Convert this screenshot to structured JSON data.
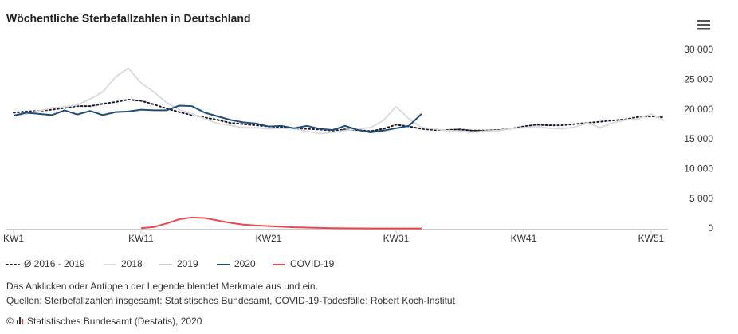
{
  "chart_data": {
    "type": "line",
    "title": "Wöchentliche Sterbefallzahlen in Deutschland",
    "x": [
      1,
      2,
      3,
      4,
      5,
      6,
      7,
      8,
      9,
      10,
      11,
      12,
      13,
      14,
      15,
      16,
      17,
      18,
      19,
      20,
      21,
      22,
      23,
      24,
      25,
      26,
      27,
      28,
      29,
      30,
      31,
      32,
      33,
      34,
      35,
      36,
      37,
      38,
      39,
      40,
      41,
      42,
      43,
      44,
      45,
      46,
      47,
      48,
      49,
      50,
      51,
      52
    ],
    "xlim": [
      1,
      52
    ],
    "xticks": [
      {
        "value": 1,
        "label": "KW1"
      },
      {
        "value": 11,
        "label": "KW11"
      },
      {
        "value": 21,
        "label": "KW21"
      },
      {
        "value": 31,
        "label": "KW31"
      },
      {
        "value": 41,
        "label": "KW41"
      },
      {
        "value": 51,
        "label": "KW51"
      }
    ],
    "ylim": [
      0,
      30000
    ],
    "yticks": [
      0,
      {
        "value": 5000,
        "label": "5 000"
      },
      {
        "value": 10000,
        "label": "10 000"
      },
      {
        "value": 15000,
        "label": "15 000"
      },
      {
        "value": 20000,
        "label": "20 000"
      },
      {
        "value": 25000,
        "label": "25 000"
      },
      {
        "value": 30000,
        "label": "30 000"
      }
    ],
    "series": [
      {
        "name": "Ø 2016 - 2019",
        "color": "#1b1b2f",
        "dash": "dotted",
        "values": [
          19500,
          19700,
          19800,
          20000,
          20300,
          20600,
          20600,
          21000,
          21300,
          21700,
          21500,
          20900,
          20200,
          19600,
          19100,
          18700,
          18300,
          17800,
          17600,
          17400,
          17200,
          17100,
          16900,
          16800,
          16700,
          16500,
          16700,
          16600,
          16400,
          16800,
          17500,
          17200,
          16800,
          16600,
          16600,
          16700,
          16500,
          16500,
          16600,
          16800,
          17200,
          17500,
          17400,
          17400,
          17600,
          17800,
          18000,
          18200,
          18400,
          18800,
          18900,
          18700
        ]
      },
      {
        "name": "2018",
        "color": "#dcdcdc",
        "values": [
          19000,
          19300,
          19800,
          20300,
          20500,
          20800,
          21800,
          23000,
          25500,
          27000,
          24500,
          23000,
          21200,
          20000,
          19300,
          18500,
          17700,
          17400,
          17000,
          17000,
          16800,
          16900,
          16800,
          16400,
          16000,
          16200,
          16500,
          16800,
          17000,
          18200,
          20500,
          18500,
          17000,
          16800,
          16500,
          16400,
          16200,
          16400,
          16500,
          16800,
          17000,
          17200,
          16900,
          16800,
          17100,
          17800,
          17000,
          17800,
          18300,
          18500,
          19300,
          18200
        ]
      },
      {
        "name": "2019",
        "color": "#cccccc",
        "hidden": true
      },
      {
        "name": "2020",
        "color": "#1f4e79",
        "values": [
          19000,
          19500,
          19300,
          19100,
          19900,
          19200,
          19800,
          19100,
          19600,
          19700,
          20000,
          19900,
          19900,
          20700,
          20600,
          19500,
          18900,
          18300,
          17900,
          17700,
          17200,
          17300,
          16900,
          17300,
          16800,
          16600,
          17300,
          16600,
          16200,
          16500,
          16900,
          17300,
          19300,
          null,
          null,
          null,
          null,
          null,
          null,
          null,
          null,
          null,
          null,
          null,
          null,
          null,
          null,
          null,
          null,
          null,
          null,
          null
        ]
      },
      {
        "name": "COVID-19",
        "color": "#e8474f",
        "values": [
          null,
          null,
          null,
          null,
          null,
          null,
          null,
          null,
          null,
          null,
          100,
          300,
          900,
          1600,
          1900,
          1800,
          1400,
          1000,
          700,
          550,
          450,
          350,
          250,
          200,
          150,
          100,
          80,
          60,
          50,
          50,
          50,
          50,
          50,
          null,
          null,
          null,
          null,
          null,
          null,
          null,
          null,
          null,
          null,
          null,
          null,
          null,
          null,
          null,
          null,
          null,
          null,
          null
        ]
      }
    ]
  },
  "notes": [
    "Das Anklicken oder Antippen der Legende blendet Merkmale aus und ein.",
    "Quellen: Sterbefallzahlen insgesamt: Statistisches Bundesamt, COVID-19-Todesfälle: Robert Koch-Institut"
  ],
  "credits": {
    "symbol": "©",
    "text": "Statistisches Bundesamt (Destatis), 2020"
  }
}
